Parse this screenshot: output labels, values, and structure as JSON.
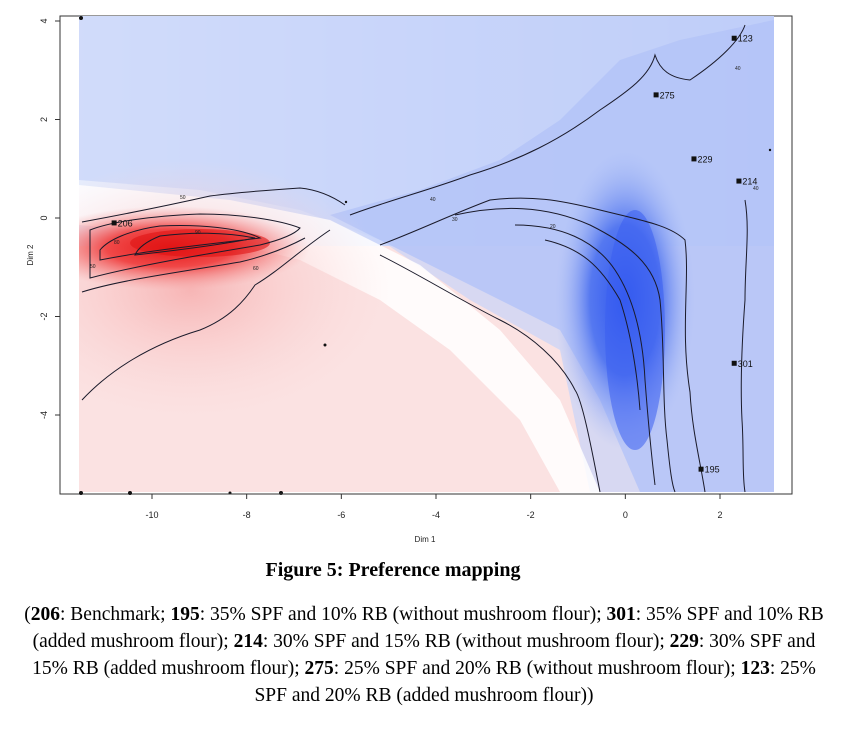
{
  "chart_data": {
    "type": "heatmap",
    "xlabel": "Dim 1",
    "ylabel": "Dim 2",
    "xlim": [
      -11.6,
      3.5
    ],
    "ylim": [
      -5.5,
      4.1
    ],
    "x_ticks": [
      -10,
      -8,
      -6,
      -4,
      -2,
      0,
      2
    ],
    "y_ticks": [
      4,
      2,
      0,
      -2,
      -4
    ],
    "grid": false,
    "colors": {
      "high_preference": "#3355ee",
      "neutral": "#ffffff",
      "low_preference": "#ee2a2a"
    },
    "points": [
      {
        "label": "206",
        "x": -10.8,
        "y": -0.1
      },
      {
        "label": "195",
        "x": 1.6,
        "y": -5.1
      },
      {
        "label": "301",
        "x": 2.3,
        "y": -2.95
      },
      {
        "label": "214",
        "x": 2.4,
        "y": 0.75
      },
      {
        "label": "229",
        "x": 1.45,
        "y": 1.2
      },
      {
        "label": "275",
        "x": 0.65,
        "y": 2.5
      },
      {
        "label": "123",
        "x": 2.3,
        "y": 3.65
      }
    ],
    "contour_labels": [
      "50",
      "60",
      "80",
      "90",
      "50",
      "40",
      "30",
      "20",
      "40",
      "40"
    ]
  },
  "figure": {
    "caption": "Figure 5: Preference mapping",
    "legend": [
      {
        "code": "206",
        "text": ": Benchmark; "
      },
      {
        "code": "195",
        "text": ": 35% SPF and 10% RB (without mushroom flour); "
      },
      {
        "code": "301",
        "text": ": 35% SPF and 10% RB (added mushroom flour); "
      },
      {
        "code": "214",
        "text": ": 30% SPF and 15% RB (without mushroom flour); "
      },
      {
        "code": "229",
        "text": ": 30% SPF and 15% RB (added mushroom flour); "
      },
      {
        "code": "275",
        "text": ": 25% SPF and 20% RB (without mushroom flour); "
      },
      {
        "code": "123",
        "text": ": 25% SPF and 20% RB (added mushroom flour)"
      }
    ],
    "legend_open": "(",
    "legend_close": ")"
  }
}
